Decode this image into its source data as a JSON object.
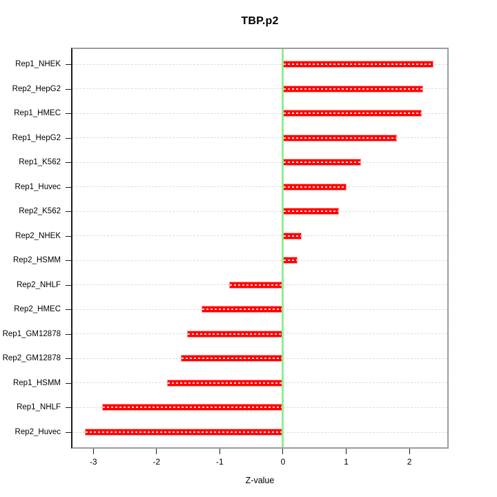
{
  "chart_data": {
    "type": "bar",
    "orientation": "horizontal",
    "title": "TBP.p2",
    "xlabel": "Z-value",
    "categories": [
      "Rep1_NHEK",
      "Rep2_HepG2",
      "Rep1_HMEC",
      "Rep1_HepG2",
      "Rep1_K562",
      "Rep1_Huvec",
      "Rep2_K562",
      "Rep2_NHEK",
      "Rep2_HSMM",
      "Rep2_NHLF",
      "Rep2_HMEC",
      "Rep1_GM12878",
      "Rep2_GM12878",
      "Rep1_HSMM",
      "Rep1_NHLF",
      "Rep2_Huvec"
    ],
    "values": [
      2.38,
      2.22,
      2.2,
      1.8,
      1.23,
      1.01,
      0.89,
      0.3,
      0.23,
      -0.85,
      -1.29,
      -1.52,
      -1.62,
      -1.83,
      -2.86,
      -3.13
    ],
    "xlim": [
      -3.33,
      2.6
    ],
    "xticks": [
      -3,
      -2,
      -1,
      0,
      1,
      2
    ],
    "zero_reference": 0,
    "grid": true,
    "legend": "none",
    "colors": {
      "bar": "#ff0000",
      "bar_edge": "#ff9999",
      "zero_line": "#90ee90",
      "grid": "#dcdcdc",
      "box": "#9c9c9c",
      "axis": "#1a1a1a",
      "text": "#000000"
    }
  }
}
